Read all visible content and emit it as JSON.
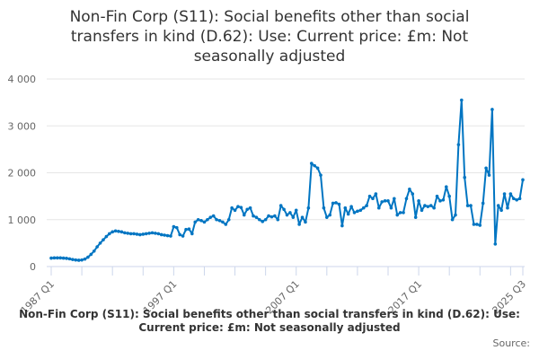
{
  "chart_data": {
    "type": "line",
    "title": "Non-Fin Corp (S11): Social benefits other than social transfers in kind (D.62): Use: Current price: £m: Not seasonally adjusted",
    "xlabel": "",
    "ylabel": "",
    "caption": "Non-Fin Corp (S11): Social benefits other than social transfers in kind (D.62): Use: Current price: £m: Not seasonally adjusted",
    "source_label": "Source:",
    "start_period": "1987 Q1",
    "end_period": "2025 Q3",
    "frequency": "quarterly",
    "ylim": [
      0,
      4000
    ],
    "y_ticks": [
      0,
      1000,
      2000,
      3000,
      4000
    ],
    "y_tick_labels": [
      "0",
      "1 000",
      "2 000",
      "3 000",
      "4 000"
    ],
    "x_tick_labels": [
      "1987 Q1",
      "1997 Q1",
      "2007 Q1",
      "2017 Q1",
      "2025 Q3"
    ],
    "grid": true,
    "color": "#0075c2",
    "series": [
      {
        "name": "D.62 Use",
        "values": [
          180,
          185,
          185,
          185,
          180,
          175,
          165,
          150,
          140,
          135,
          140,
          160,
          200,
          260,
          330,
          420,
          500,
          570,
          640,
          700,
          740,
          760,
          750,
          740,
          720,
          710,
          700,
          700,
          690,
          680,
          690,
          700,
          710,
          720,
          710,
          700,
          680,
          670,
          660,
          650,
          850,
          830,
          680,
          650,
          790,
          800,
          700,
          950,
          1000,
          980,
          950,
          1000,
          1050,
          1080,
          1000,
          980,
          950,
          900,
          1000,
          1250,
          1200,
          1280,
          1260,
          1100,
          1220,
          1250,
          1080,
          1050,
          1000,
          960,
          1000,
          1080,
          1060,
          1080,
          1000,
          1300,
          1220,
          1100,
          1150,
          1050,
          1200,
          900,
          1050,
          950,
          1250,
          2200,
          2150,
          2100,
          1950,
          1250,
          1050,
          1100,
          1350,
          1360,
          1330,
          870,
          1250,
          1120,
          1280,
          1150,
          1180,
          1200,
          1250,
          1300,
          1500,
          1450,
          1550,
          1250,
          1380,
          1400,
          1400,
          1250,
          1450,
          1100,
          1150,
          1150,
          1450,
          1650,
          1550,
          1050,
          1400,
          1200,
          1300,
          1280,
          1300,
          1250,
          1500,
          1400,
          1420,
          1700,
          1500,
          1000,
          1100,
          2600,
          3550,
          1900,
          1300,
          1300,
          900,
          900,
          880,
          1350,
          2100,
          1950,
          3350,
          480,
          1300,
          1200,
          1550,
          1250,
          1550,
          1450,
          1420,
          1450,
          1850
        ]
      }
    ]
  }
}
